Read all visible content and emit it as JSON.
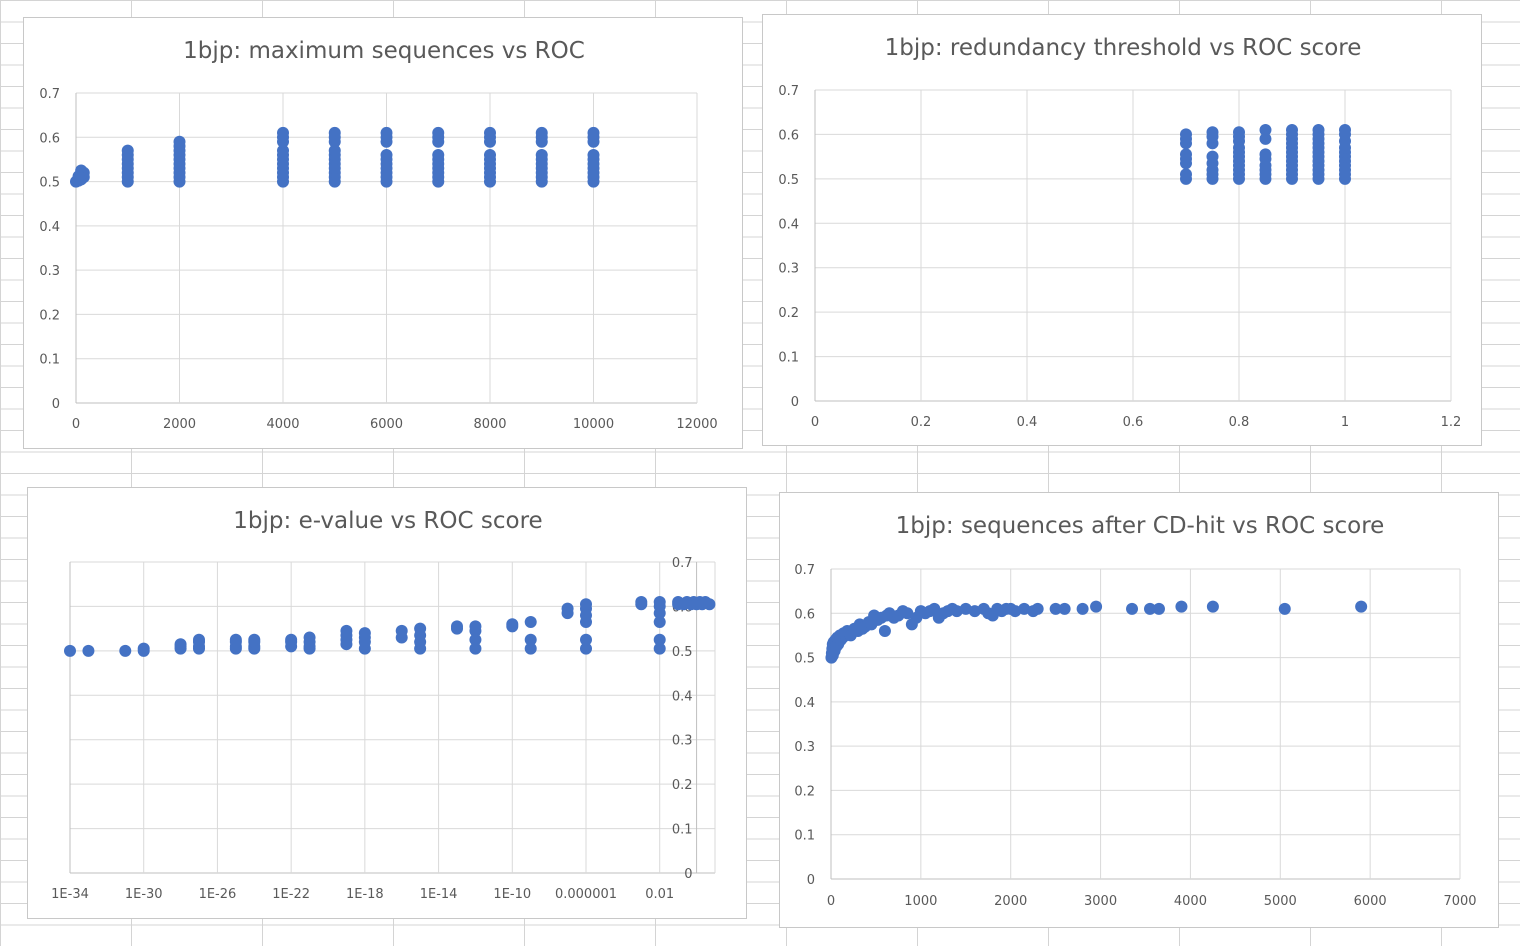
{
  "chart_data": [
    {
      "id": "c1",
      "type": "scatter",
      "title": "1bjp: maximum sequences vs ROC",
      "xlim": [
        0,
        12000
      ],
      "ylim": [
        0,
        0.7
      ],
      "x_ticks": [
        "0",
        "2000",
        "4000",
        "6000",
        "8000",
        "10000",
        "12000"
      ],
      "y_ticks": [
        "0",
        "0.1",
        "0.2",
        "0.3",
        "0.4",
        "0.5",
        "0.6",
        "0.7"
      ],
      "grid": true,
      "color": "#4472c4",
      "points": [
        [
          0,
          0.5
        ],
        [
          50,
          0.502
        ],
        [
          100,
          0.505
        ],
        [
          150,
          0.51
        ],
        [
          100,
          0.515
        ],
        [
          150,
          0.52
        ],
        [
          100,
          0.525
        ],
        [
          50,
          0.512
        ],
        [
          1000,
          0.5
        ],
        [
          1000,
          0.51
        ],
        [
          1000,
          0.52
        ],
        [
          1000,
          0.53
        ],
        [
          1000,
          0.54
        ],
        [
          1000,
          0.55
        ],
        [
          1000,
          0.56
        ],
        [
          1000,
          0.57
        ],
        [
          2000,
          0.5
        ],
        [
          2000,
          0.51
        ],
        [
          2000,
          0.52
        ],
        [
          2000,
          0.53
        ],
        [
          2000,
          0.54
        ],
        [
          2000,
          0.55
        ],
        [
          2000,
          0.56
        ],
        [
          2000,
          0.57
        ],
        [
          2000,
          0.58
        ],
        [
          2000,
          0.59
        ],
        [
          4000,
          0.5
        ],
        [
          4000,
          0.51
        ],
        [
          4000,
          0.52
        ],
        [
          4000,
          0.53
        ],
        [
          4000,
          0.54
        ],
        [
          4000,
          0.55
        ],
        [
          4000,
          0.56
        ],
        [
          4000,
          0.57
        ],
        [
          4000,
          0.59
        ],
        [
          4000,
          0.6
        ],
        [
          4000,
          0.61
        ],
        [
          5000,
          0.5
        ],
        [
          5000,
          0.51
        ],
        [
          5000,
          0.52
        ],
        [
          5000,
          0.53
        ],
        [
          5000,
          0.54
        ],
        [
          5000,
          0.55
        ],
        [
          5000,
          0.56
        ],
        [
          5000,
          0.57
        ],
        [
          5000,
          0.59
        ],
        [
          5000,
          0.6
        ],
        [
          5000,
          0.61
        ],
        [
          6000,
          0.5
        ],
        [
          6000,
          0.51
        ],
        [
          6000,
          0.52
        ],
        [
          6000,
          0.53
        ],
        [
          6000,
          0.54
        ],
        [
          6000,
          0.55
        ],
        [
          6000,
          0.56
        ],
        [
          6000,
          0.59
        ],
        [
          6000,
          0.6
        ],
        [
          6000,
          0.61
        ],
        [
          7000,
          0.5
        ],
        [
          7000,
          0.51
        ],
        [
          7000,
          0.52
        ],
        [
          7000,
          0.53
        ],
        [
          7000,
          0.54
        ],
        [
          7000,
          0.55
        ],
        [
          7000,
          0.56
        ],
        [
          7000,
          0.59
        ],
        [
          7000,
          0.6
        ],
        [
          7000,
          0.61
        ],
        [
          8000,
          0.5
        ],
        [
          8000,
          0.51
        ],
        [
          8000,
          0.52
        ],
        [
          8000,
          0.53
        ],
        [
          8000,
          0.54
        ],
        [
          8000,
          0.55
        ],
        [
          8000,
          0.56
        ],
        [
          8000,
          0.59
        ],
        [
          8000,
          0.6
        ],
        [
          8000,
          0.61
        ],
        [
          9000,
          0.5
        ],
        [
          9000,
          0.51
        ],
        [
          9000,
          0.52
        ],
        [
          9000,
          0.53
        ],
        [
          9000,
          0.54
        ],
        [
          9000,
          0.55
        ],
        [
          9000,
          0.56
        ],
        [
          9000,
          0.59
        ],
        [
          9000,
          0.6
        ],
        [
          9000,
          0.61
        ],
        [
          10000,
          0.5
        ],
        [
          10000,
          0.51
        ],
        [
          10000,
          0.52
        ],
        [
          10000,
          0.53
        ],
        [
          10000,
          0.54
        ],
        [
          10000,
          0.55
        ],
        [
          10000,
          0.56
        ],
        [
          10000,
          0.59
        ],
        [
          10000,
          0.6
        ],
        [
          10000,
          0.61
        ]
      ]
    },
    {
      "id": "c2",
      "type": "scatter",
      "title": "1bjp: redundancy threshold vs ROC score",
      "xlim": [
        0,
        1.2
      ],
      "ylim": [
        0,
        0.7
      ],
      "x_ticks": [
        "0",
        "0.2",
        "0.4",
        "0.6",
        "0.8",
        "1",
        "1.2"
      ],
      "y_ticks": [
        "0",
        "0.1",
        "0.2",
        "0.3",
        "0.4",
        "0.5",
        "0.6",
        "0.7"
      ],
      "grid": true,
      "color": "#4472c4",
      "points": [
        [
          0.7,
          0.5
        ],
        [
          0.7,
          0.51
        ],
        [
          0.7,
          0.535
        ],
        [
          0.7,
          0.545
        ],
        [
          0.7,
          0.555
        ],
        [
          0.7,
          0.58
        ],
        [
          0.7,
          0.59
        ],
        [
          0.7,
          0.6
        ],
        [
          0.75,
          0.5
        ],
        [
          0.75,
          0.51
        ],
        [
          0.75,
          0.52
        ],
        [
          0.75,
          0.535
        ],
        [
          0.75,
          0.55
        ],
        [
          0.75,
          0.58
        ],
        [
          0.75,
          0.595
        ],
        [
          0.75,
          0.605
        ],
        [
          0.8,
          0.5
        ],
        [
          0.8,
          0.51
        ],
        [
          0.8,
          0.52
        ],
        [
          0.8,
          0.53
        ],
        [
          0.8,
          0.54
        ],
        [
          0.8,
          0.55
        ],
        [
          0.8,
          0.56
        ],
        [
          0.8,
          0.57
        ],
        [
          0.8,
          0.585
        ],
        [
          0.8,
          0.595
        ],
        [
          0.8,
          0.605
        ],
        [
          0.85,
          0.5
        ],
        [
          0.85,
          0.51
        ],
        [
          0.85,
          0.52
        ],
        [
          0.85,
          0.53
        ],
        [
          0.85,
          0.545
        ],
        [
          0.85,
          0.555
        ],
        [
          0.85,
          0.59
        ],
        [
          0.85,
          0.61
        ],
        [
          0.9,
          0.5
        ],
        [
          0.9,
          0.51
        ],
        [
          0.9,
          0.52
        ],
        [
          0.9,
          0.53
        ],
        [
          0.9,
          0.54
        ],
        [
          0.9,
          0.55
        ],
        [
          0.9,
          0.56
        ],
        [
          0.9,
          0.57
        ],
        [
          0.9,
          0.58
        ],
        [
          0.9,
          0.59
        ],
        [
          0.9,
          0.6
        ],
        [
          0.9,
          0.61
        ],
        [
          0.95,
          0.5
        ],
        [
          0.95,
          0.51
        ],
        [
          0.95,
          0.52
        ],
        [
          0.95,
          0.53
        ],
        [
          0.95,
          0.54
        ],
        [
          0.95,
          0.55
        ],
        [
          0.95,
          0.56
        ],
        [
          0.95,
          0.57
        ],
        [
          0.95,
          0.58
        ],
        [
          0.95,
          0.59
        ],
        [
          0.95,
          0.6
        ],
        [
          0.95,
          0.61
        ],
        [
          1,
          0.5
        ],
        [
          1,
          0.51
        ],
        [
          1,
          0.52
        ],
        [
          1,
          0.53
        ],
        [
          1,
          0.54
        ],
        [
          1,
          0.55
        ],
        [
          1,
          0.56
        ],
        [
          1,
          0.57
        ],
        [
          1,
          0.585
        ],
        [
          1,
          0.6
        ],
        [
          1,
          0.61
        ]
      ]
    },
    {
      "id": "c3",
      "type": "scatter",
      "title": "1bjp: e-value vs ROC score",
      "x_scale": "log10",
      "xlim": [
        1e-34,
        10
      ],
      "ylim": [
        0,
        0.7
      ],
      "x_ticks": [
        "1E-34",
        "1E-30",
        "1E-26",
        "1E-22",
        "1E-18",
        "1E-14",
        "1E-10",
        "0.000001",
        "0.01"
      ],
      "y_ticks": [
        "0",
        "0.1",
        "0.2",
        "0.3",
        "0.4",
        "0.5",
        "0.6",
        "0.7"
      ],
      "grid": true,
      "color": "#4472c4",
      "points": [
        [
          1e-34,
          0.5
        ],
        [
          1e-33,
          0.5
        ],
        [
          1e-31,
          0.5
        ],
        [
          1e-30,
          0.5
        ],
        [
          1e-30,
          0.505
        ],
        [
          1e-28,
          0.505
        ],
        [
          1e-28,
          0.51
        ],
        [
          1e-28,
          0.515
        ],
        [
          1e-27,
          0.505
        ],
        [
          1e-27,
          0.51
        ],
        [
          1e-27,
          0.52
        ],
        [
          1e-27,
          0.525
        ],
        [
          1e-25,
          0.505
        ],
        [
          1e-25,
          0.51
        ],
        [
          1e-25,
          0.52
        ],
        [
          1e-25,
          0.525
        ],
        [
          1e-24,
          0.505
        ],
        [
          1e-24,
          0.51
        ],
        [
          1e-24,
          0.52
        ],
        [
          1e-24,
          0.525
        ],
        [
          1e-22,
          0.51
        ],
        [
          1e-22,
          0.52
        ],
        [
          1e-22,
          0.525
        ],
        [
          1e-21,
          0.505
        ],
        [
          1e-21,
          0.51
        ],
        [
          1e-21,
          0.52
        ],
        [
          1e-21,
          0.53
        ],
        [
          1e-19,
          0.515
        ],
        [
          1e-19,
          0.525
        ],
        [
          1e-19,
          0.535
        ],
        [
          1e-19,
          0.545
        ],
        [
          1e-18,
          0.505
        ],
        [
          1e-18,
          0.52
        ],
        [
          1e-18,
          0.53
        ],
        [
          1e-18,
          0.54
        ],
        [
          1e-16,
          0.53
        ],
        [
          1e-16,
          0.545
        ],
        [
          1e-15,
          0.505
        ],
        [
          1e-15,
          0.52
        ],
        [
          1e-15,
          0.535
        ],
        [
          1e-15,
          0.55
        ],
        [
          1e-13,
          0.55
        ],
        [
          1e-13,
          0.555
        ],
        [
          1e-12,
          0.505
        ],
        [
          1e-12,
          0.525
        ],
        [
          1e-12,
          0.545
        ],
        [
          1e-12,
          0.555
        ],
        [
          1e-10,
          0.555
        ],
        [
          1e-10,
          0.56
        ],
        [
          1e-09,
          0.505
        ],
        [
          1e-09,
          0.525
        ],
        [
          1e-09,
          0.565
        ],
        [
          1e-07,
          0.585
        ],
        [
          1e-07,
          0.595
        ],
        [
          1e-06,
          0.505
        ],
        [
          1e-06,
          0.525
        ],
        [
          1e-06,
          0.565
        ],
        [
          1e-06,
          0.58
        ],
        [
          1e-06,
          0.595
        ],
        [
          1e-06,
          0.605
        ],
        [
          0.001,
          0.605
        ],
        [
          0.001,
          0.61
        ],
        [
          0.01,
          0.505
        ],
        [
          0.01,
          0.525
        ],
        [
          0.01,
          0.565
        ],
        [
          0.01,
          0.585
        ],
        [
          0.01,
          0.6
        ],
        [
          0.01,
          0.61
        ],
        [
          0.1,
          0.605
        ],
        [
          0.1,
          0.61
        ],
        [
          0.2,
          0.605
        ],
        [
          0.3,
          0.61
        ],
        [
          0.5,
          0.605
        ],
        [
          0.7,
          0.61
        ],
        [
          1,
          0.605
        ],
        [
          1.5,
          0.61
        ],
        [
          2,
          0.605
        ],
        [
          3,
          0.61
        ],
        [
          5,
          0.605
        ]
      ]
    },
    {
      "id": "c4",
      "type": "scatter",
      "title": "1bjp: sequences after CD-hit vs ROC score",
      "xlim": [
        0,
        7000
      ],
      "ylim": [
        0,
        0.7
      ],
      "x_ticks": [
        "0",
        "1000",
        "2000",
        "3000",
        "4000",
        "5000",
        "6000",
        "7000"
      ],
      "y_ticks": [
        "0",
        "0.1",
        "0.2",
        "0.3",
        "0.4",
        "0.5",
        "0.6",
        "0.7"
      ],
      "grid": true,
      "color": "#4472c4",
      "points": [
        [
          5,
          0.5
        ],
        [
          10,
          0.51
        ],
        [
          15,
          0.52
        ],
        [
          20,
          0.53
        ],
        [
          30,
          0.535
        ],
        [
          50,
          0.54
        ],
        [
          70,
          0.545
        ],
        [
          100,
          0.55
        ],
        [
          130,
          0.545
        ],
        [
          160,
          0.55
        ],
        [
          200,
          0.555
        ],
        [
          250,
          0.56
        ],
        [
          20,
          0.505
        ],
        [
          40,
          0.515
        ],
        [
          60,
          0.525
        ],
        [
          80,
          0.53
        ],
        [
          110,
          0.54
        ],
        [
          140,
          0.555
        ],
        [
          180,
          0.56
        ],
        [
          220,
          0.55
        ],
        [
          260,
          0.565
        ],
        [
          300,
          0.56
        ],
        [
          320,
          0.575
        ],
        [
          350,
          0.565
        ],
        [
          380,
          0.57
        ],
        [
          420,
          0.58
        ],
        [
          450,
          0.575
        ],
        [
          480,
          0.595
        ],
        [
          520,
          0.585
        ],
        [
          560,
          0.59
        ],
        [
          600,
          0.56
        ],
        [
          620,
          0.595
        ],
        [
          650,
          0.6
        ],
        [
          700,
          0.59
        ],
        [
          750,
          0.595
        ],
        [
          800,
          0.605
        ],
        [
          850,
          0.6
        ],
        [
          900,
          0.575
        ],
        [
          950,
          0.59
        ],
        [
          1000,
          0.605
        ],
        [
          1050,
          0.6
        ],
        [
          1100,
          0.605
        ],
        [
          1150,
          0.61
        ],
        [
          1200,
          0.59
        ],
        [
          1250,
          0.6
        ],
        [
          1300,
          0.605
        ],
        [
          1350,
          0.61
        ],
        [
          1400,
          0.605
        ],
        [
          1500,
          0.61
        ],
        [
          1600,
          0.605
        ],
        [
          1700,
          0.61
        ],
        [
          1750,
          0.6
        ],
        [
          1800,
          0.595
        ],
        [
          1850,
          0.61
        ],
        [
          1900,
          0.605
        ],
        [
          1950,
          0.61
        ],
        [
          2000,
          0.61
        ],
        [
          2050,
          0.605
        ],
        [
          2150,
          0.61
        ],
        [
          2250,
          0.605
        ],
        [
          2300,
          0.61
        ],
        [
          2500,
          0.61
        ],
        [
          2600,
          0.61
        ],
        [
          2800,
          0.61
        ],
        [
          2950,
          0.615
        ],
        [
          3350,
          0.61
        ],
        [
          3550,
          0.61
        ],
        [
          3650,
          0.61
        ],
        [
          3900,
          0.615
        ],
        [
          4250,
          0.615
        ],
        [
          5050,
          0.61
        ],
        [
          5900,
          0.615
        ]
      ]
    }
  ]
}
